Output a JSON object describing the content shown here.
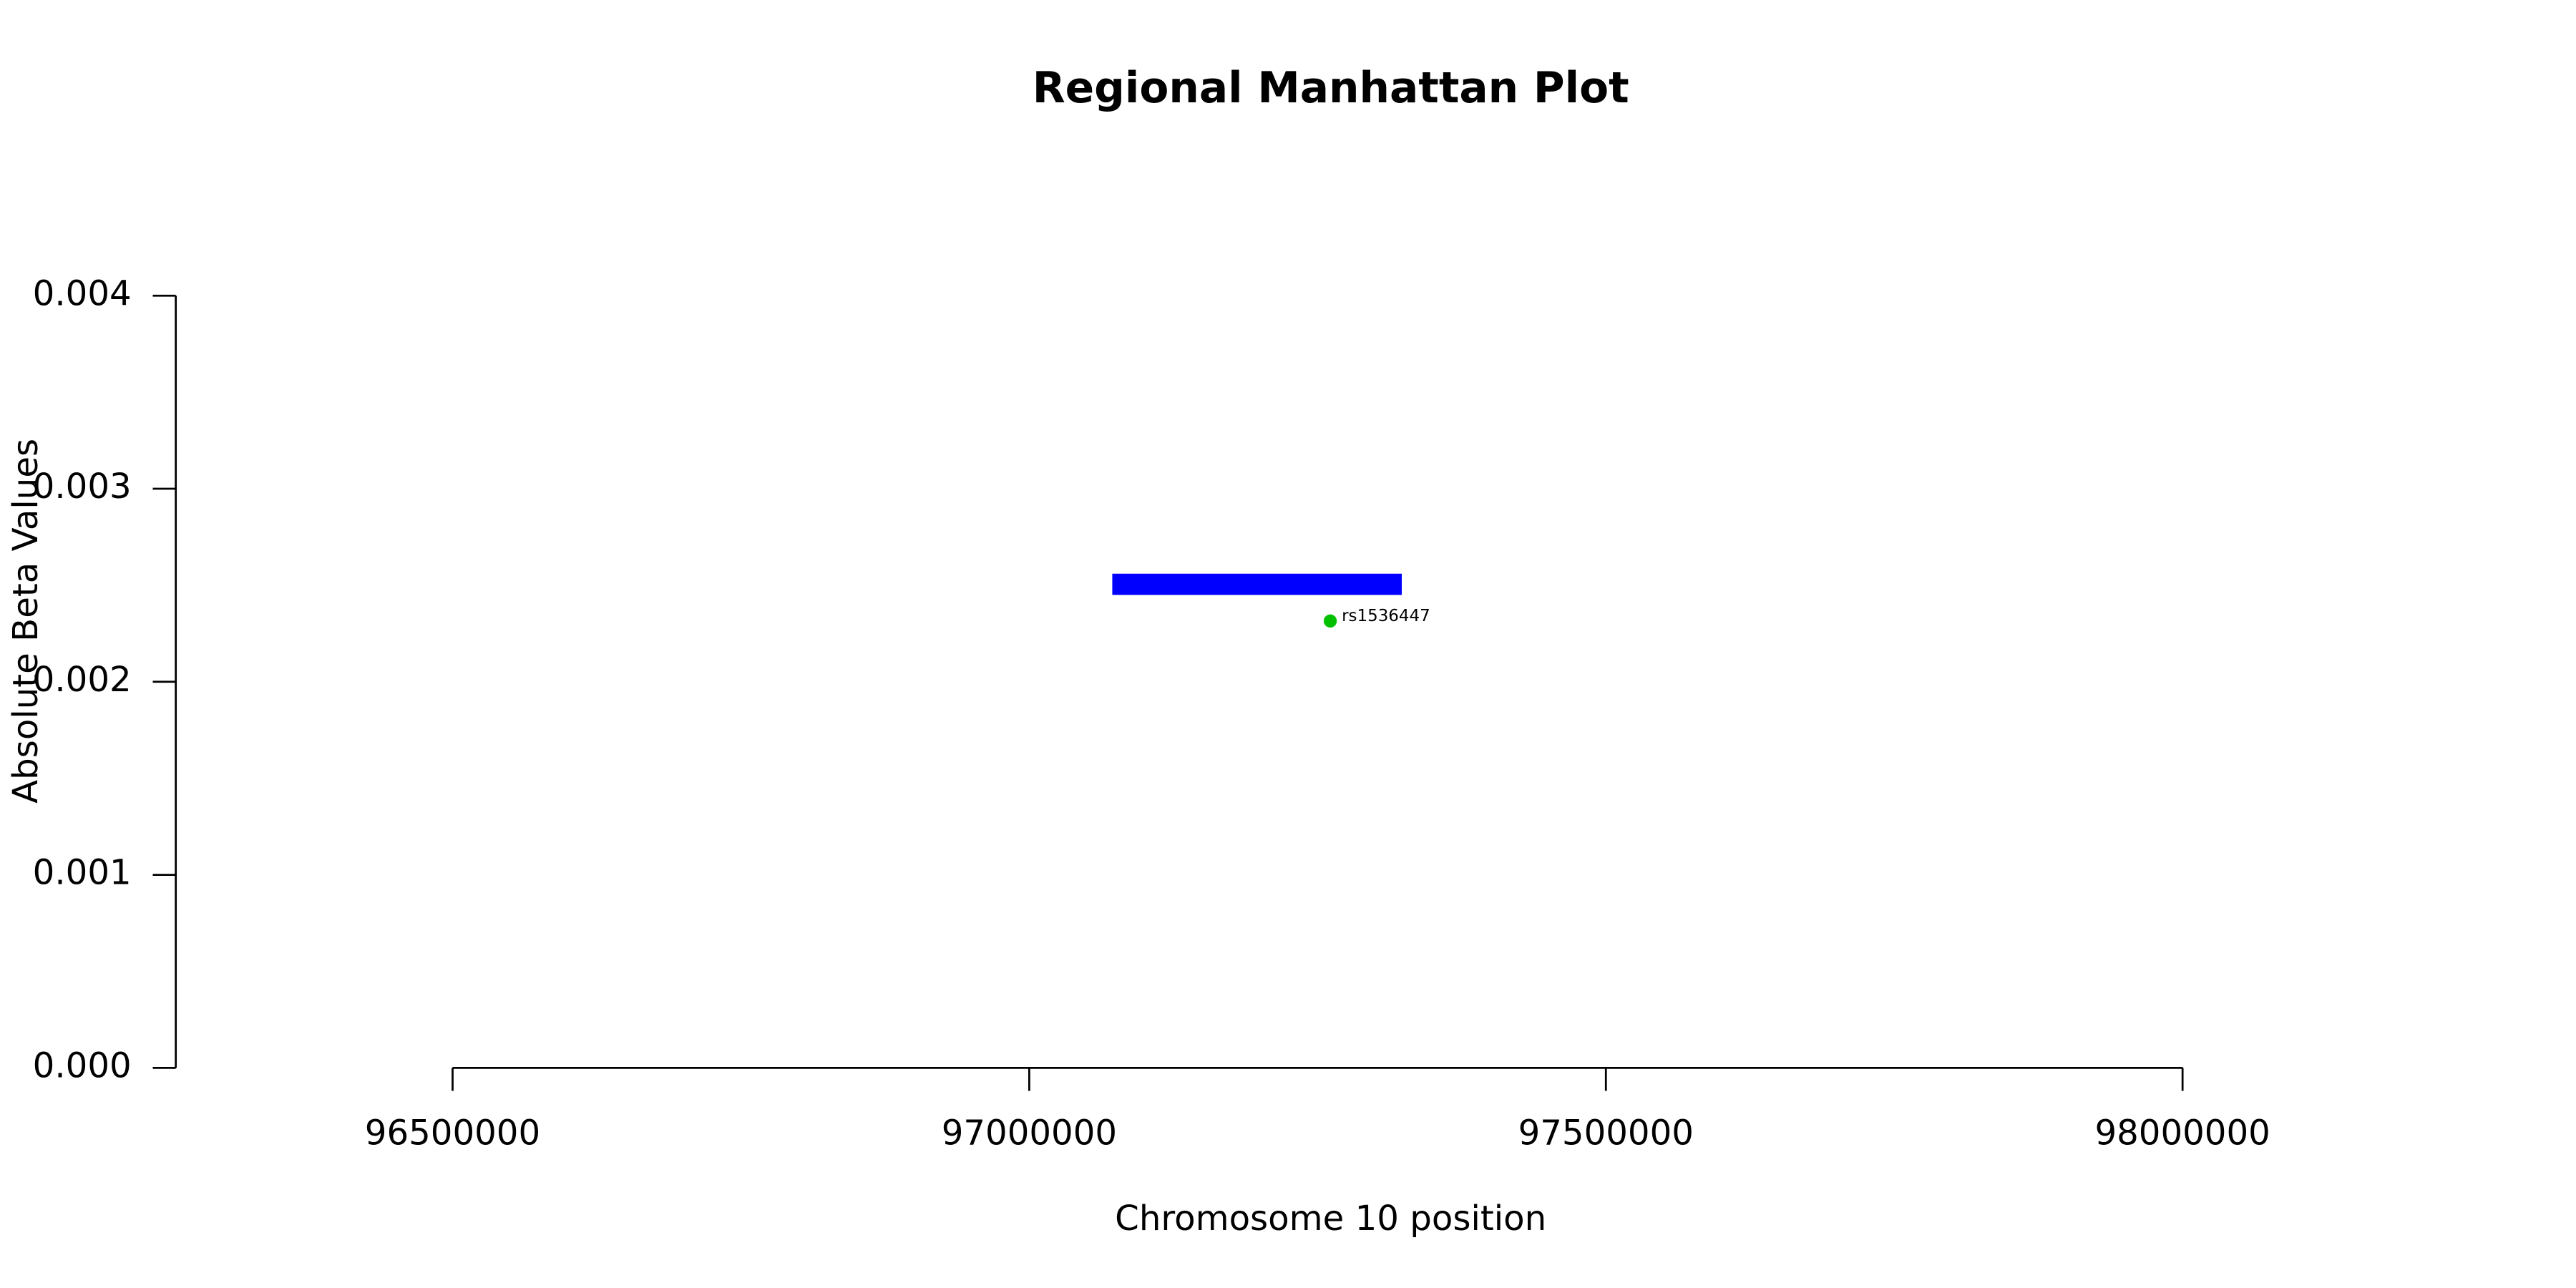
{
  "chart_data": {
    "type": "scatter",
    "title": "Regional Manhattan Plot",
    "xlabel": "Chromosome 10 position",
    "ylabel": "Absolute Beta Values",
    "xlim": [
      96260000,
      98240000
    ],
    "ylim": [
      0,
      0.004
    ],
    "xticks": [
      96500000,
      97000000,
      97500000,
      98000000
    ],
    "yticks": [
      {
        "value": 0,
        "label": "0.000"
      },
      {
        "value": 0.001,
        "label": "0.001"
      },
      {
        "value": 0.002,
        "label": "0.002"
      },
      {
        "value": 0.003,
        "label": "0.003"
      },
      {
        "value": 0.004,
        "label": "0.004"
      }
    ],
    "regions": [
      {
        "start": 97072000,
        "end": 97323000,
        "ymin": 0.00245,
        "ymax": 0.00256,
        "color": "#0000ff"
      }
    ],
    "series": [
      {
        "color": "#00c000",
        "x": [
          97261000
        ],
        "values": [
          0.002315
        ],
        "labels": [
          "rs1536447"
        ]
      }
    ],
    "grid": false
  }
}
